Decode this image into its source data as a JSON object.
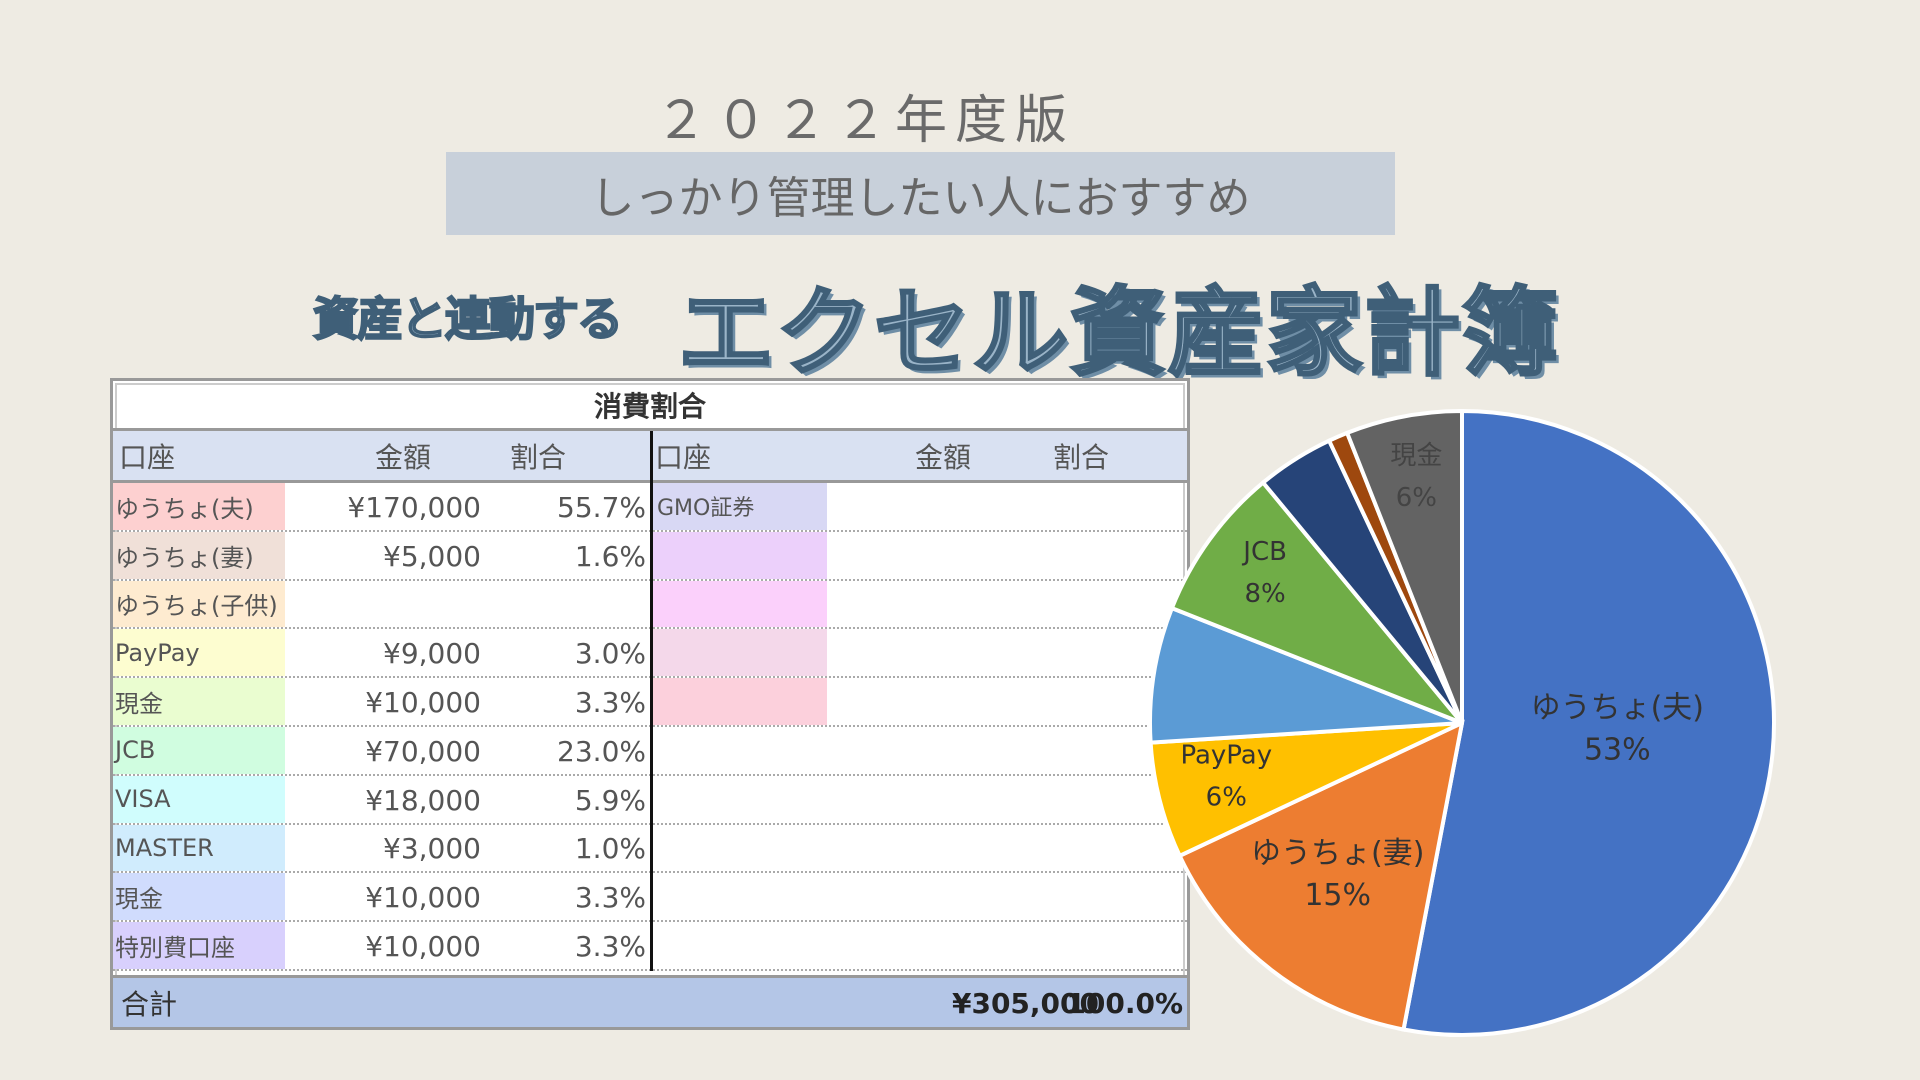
{
  "header": {
    "year": "２０２２年度版",
    "banner": "しっかり管理したい人におすすめ",
    "subtitle": "資産と連動する",
    "title": "エクセル資産家計簿"
  },
  "table": {
    "title": "消費割合",
    "columns": [
      "口座",
      "金額",
      "割合",
      "口座",
      "金額",
      "割合"
    ],
    "left_rows": [
      {
        "label": "ゆうちょ(夫)",
        "amount": "¥170,000",
        "pct": "55.7%",
        "color": "#fdd0d0"
      },
      {
        "label": "ゆうちょ(妻)",
        "amount": "¥5,000",
        "pct": "1.6%",
        "color": "#f0e0d8"
      },
      {
        "label": "ゆうちょ(子供)",
        "amount": "",
        "pct": "",
        "color": "#feebd0"
      },
      {
        "label": "PayPay",
        "amount": "¥9,000",
        "pct": "3.0%",
        "color": "#fdfdd0"
      },
      {
        "label": "現金",
        "amount": "¥10,000",
        "pct": "3.3%",
        "color": "#eafdd0"
      },
      {
        "label": "JCB",
        "amount": "¥70,000",
        "pct": "23.0%",
        "color": "#d0fde0"
      },
      {
        "label": "VISA",
        "amount": "¥18,000",
        "pct": "5.9%",
        "color": "#d0fdfd"
      },
      {
        "label": "MASTER",
        "amount": "¥3,000",
        "pct": "1.0%",
        "color": "#d0ecfd"
      },
      {
        "label": "現金",
        "amount": "¥10,000",
        "pct": "3.3%",
        "color": "#d0dcfd"
      },
      {
        "label": "特別費口座",
        "amount": "¥10,000",
        "pct": "3.3%",
        "color": "#d8d0fd"
      }
    ],
    "right_rows": [
      {
        "label": "GMO証券",
        "color": "#d8d8f4"
      },
      {
        "label": "",
        "color": "#ecd0fb"
      },
      {
        "label": "",
        "color": "#fbd0fb"
      },
      {
        "label": "",
        "color": "#f4d8ea"
      },
      {
        "label": "",
        "color": "#fcd0dc"
      }
    ],
    "total": {
      "label": "合計",
      "amount": "¥305,000",
      "pct": "100.0%"
    }
  },
  "chart_data": {
    "type": "pie",
    "start": "top, clockwise",
    "slices": [
      {
        "label": "ゆうちょ(夫)",
        "value": 53,
        "text": "53%",
        "color": "#4472c4"
      },
      {
        "label": "ゆうちょ(妻)",
        "value": 15,
        "text": "15%",
        "color": "#ed7d31"
      },
      {
        "label": "PayPay",
        "value": 6,
        "text": "6%",
        "color": "#ffc000"
      },
      {
        "label": "",
        "value": 7,
        "text": "",
        "color": "#5b9bd5"
      },
      {
        "label": "JCB",
        "value": 8,
        "text": "8%",
        "color": "#70ad47"
      },
      {
        "label": "",
        "value": 4,
        "text": "",
        "color": "#264478"
      },
      {
        "label": "",
        "value": 1,
        "text": "",
        "color": "#9e480e"
      },
      {
        "label": "現金",
        "value": 6,
        "text": "6%",
        "color": "#636363"
      }
    ]
  }
}
